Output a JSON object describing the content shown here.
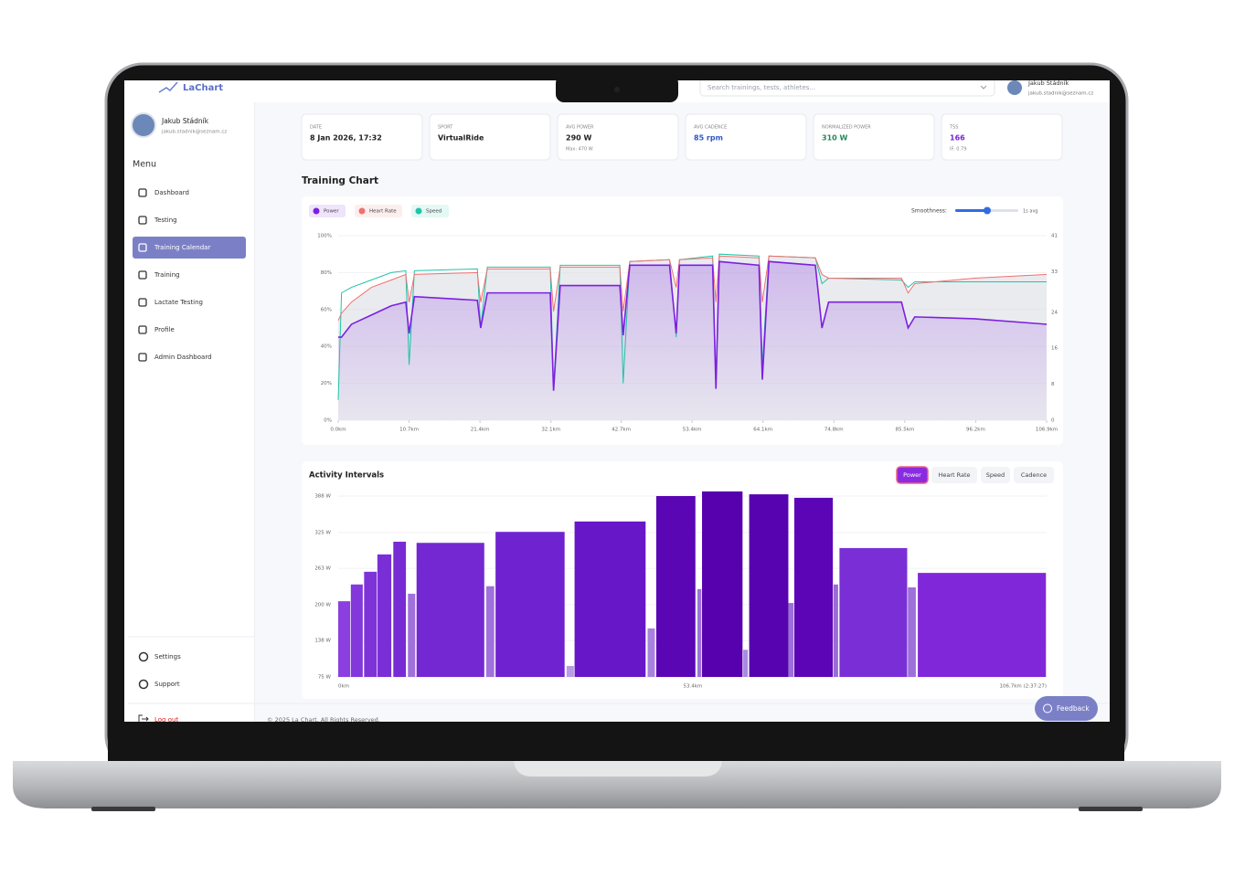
{
  "topbar": {
    "logo": "LaChart",
    "search_placeholder": "Search trainings, tests, athletes...",
    "user": {
      "name": "Jakub Stádník",
      "email": "jakub.stadnik@seznam.cz"
    }
  },
  "sidebar": {
    "user": {
      "name": "Jakub Stádník",
      "email": "jakub.stadnik@seznam.cz"
    },
    "menu_title": "Menu",
    "items": [
      "Dashboard",
      "Testing",
      "Training Calendar",
      "Training",
      "Lactate Testing",
      "Profile",
      "Admin Dashboard"
    ],
    "active": 2,
    "bottom_items": [
      "Settings",
      "Support"
    ],
    "logout": "Log out"
  },
  "stats": [
    {
      "label": "DATE",
      "value": "8 Jan 2026, 17:32",
      "color": "#222222"
    },
    {
      "label": "SPORT",
      "value": "VirtualRide",
      "color": "#222222"
    },
    {
      "label": "AVG POWER",
      "value": "290 W",
      "sub": "Max: 470 W",
      "color": "#222222"
    },
    {
      "label": "AVG CADENCE",
      "value": "85 rpm",
      "color": "#2f55c9"
    },
    {
      "label": "NORMALIZED POWER",
      "value": "310 W",
      "color": "#1f8a5a"
    },
    {
      "label": "TSS",
      "value": "166",
      "sub": "IF: 0.79",
      "color": "#7a22d8"
    }
  ],
  "chart_data": [
    {
      "type": "line",
      "title": "Training Chart",
      "smoothness_label": "Smoothness:",
      "smoothness_value": "1s avg",
      "x": [
        0,
        0.5,
        2,
        5,
        8,
        10.2,
        10.7,
        11.5,
        21,
        21.5,
        22.5,
        32,
        32.5,
        33.5,
        42.5,
        43,
        44,
        50,
        51,
        51.5,
        56.5,
        57,
        57.5,
        63.5,
        64,
        65,
        72,
        73,
        74,
        85,
        86,
        87,
        96,
        106.9
      ],
      "series": [
        {
          "name": "Power",
          "color": "#7d1fe0",
          "values": [
            45,
            45,
            52,
            57,
            62,
            64,
            47,
            67,
            65,
            50,
            69,
            69,
            16,
            73,
            73,
            46,
            84,
            84,
            47,
            84,
            84,
            17,
            86,
            84,
            22,
            86,
            84,
            50,
            64,
            64,
            50,
            56,
            55,
            52
          ]
        },
        {
          "name": "Heart Rate",
          "color": "#f07070",
          "values": [
            54,
            58,
            64,
            72,
            76,
            79,
            64,
            79,
            80,
            64,
            82,
            82,
            59,
            83,
            83,
            59,
            86,
            87,
            72,
            87,
            88,
            64,
            89,
            88,
            64,
            89,
            88,
            79,
            77,
            77,
            69,
            74,
            77,
            79
          ]
        },
        {
          "name": "Speed",
          "color": "#20c4a8",
          "values": [
            11,
            69,
            72,
            76,
            80,
            81,
            30,
            81,
            82,
            50,
            83,
            83,
            17,
            84,
            84,
            20,
            86,
            87,
            45,
            87,
            89,
            20,
            90,
            89,
            30,
            89,
            88,
            74,
            77,
            76,
            72,
            75,
            75,
            75
          ]
        }
      ],
      "xlim": [
        0,
        106.9
      ],
      "xticks": [
        {
          "value": 0,
          "label": "0.0km"
        },
        {
          "value": 10.7,
          "label": "10.7km"
        },
        {
          "value": 21.4,
          "label": "21.4km"
        },
        {
          "value": 32.1,
          "label": "32.1km"
        },
        {
          "value": 42.7,
          "label": "42.7km"
        },
        {
          "value": 53.4,
          "label": "53.4km"
        },
        {
          "value": 64.1,
          "label": "64.1km"
        },
        {
          "value": 74.8,
          "label": "74.8km"
        },
        {
          "value": 85.5,
          "label": "85.5km"
        },
        {
          "value": 96.2,
          "label": "96.2km"
        },
        {
          "value": 106.9,
          "label": "106.9km"
        }
      ],
      "ylim": [
        0,
        100
      ],
      "yticks": [
        {
          "value": 0,
          "label": "0%"
        },
        {
          "value": 20,
          "label": "20%"
        },
        {
          "value": 40,
          "label": "40%"
        },
        {
          "value": 60,
          "label": "60%"
        },
        {
          "value": 80,
          "label": "80%"
        },
        {
          "value": 100,
          "label": "100%"
        }
      ],
      "y2lim": [
        0,
        41
      ],
      "y2ticks": [
        0,
        8,
        16,
        24,
        33,
        41
      ],
      "grid": true
    },
    {
      "type": "bar",
      "title": "Activity Intervals",
      "buttons": [
        "Power",
        "Heart Rate",
        "Speed",
        "Cadence"
      ],
      "active_button": 0,
      "starts": [
        0,
        1.9,
        3.9,
        5.9,
        8.3,
        10.5,
        11.8,
        22.3,
        23.7,
        34.4,
        35.6,
        46.6,
        47.9,
        54.1,
        54.8,
        61.0,
        61.9,
        67.8,
        68.7,
        74.6,
        75.5,
        85.8,
        87.3
      ],
      "ends": [
        1.8,
        3.7,
        5.8,
        8.0,
        10.2,
        11.6,
        22.0,
        23.5,
        34.1,
        35.5,
        46.3,
        47.7,
        53.8,
        54.7,
        60.9,
        61.7,
        67.8,
        68.6,
        74.5,
        75.3,
        85.7,
        87.0,
        106.6
      ],
      "values": [
        206,
        235,
        257,
        287,
        309,
        219,
        307,
        232,
        326,
        94,
        344,
        159,
        388,
        227,
        396,
        122,
        391,
        203,
        385,
        235,
        298,
        230,
        255
      ],
      "colors": [
        "#8b3fe0",
        "#8338dc",
        "#7d33d8",
        "#7a2fd6",
        "#772bd4",
        "#a070dc",
        "#7428d2",
        "#a070dc",
        "#6f22cf",
        "#b89ae6",
        "#6716c8",
        "#a882df",
        "#5a06b4",
        "#9e72db",
        "#5600ae",
        "#a88ae0",
        "#5703b0",
        "#9b70d9",
        "#5c05b6",
        "#9a6cd8",
        "#7a2fd6",
        "#9e70db",
        "#8127da"
      ],
      "xlim": [
        0,
        106.7
      ],
      "xticks": [
        {
          "value": 0,
          "label": "0km"
        },
        {
          "value": 53.4,
          "label": "53.4km"
        },
        {
          "value": 106.7,
          "label": "106.7km (2:37:27)"
        }
      ],
      "ylim": [
        75,
        388
      ],
      "yticks": [
        {
          "value": 75,
          "label": "75 W"
        },
        {
          "value": 138,
          "label": "138 W"
        },
        {
          "value": 200,
          "label": "200 W"
        },
        {
          "value": 263,
          "label": "263 W"
        },
        {
          "value": 325,
          "label": "325 W"
        },
        {
          "value": 388,
          "label": "388 W"
        }
      ]
    }
  ],
  "footer": "© 2025 La Chart. All Rights Reserved.",
  "feedback": "Feedback"
}
